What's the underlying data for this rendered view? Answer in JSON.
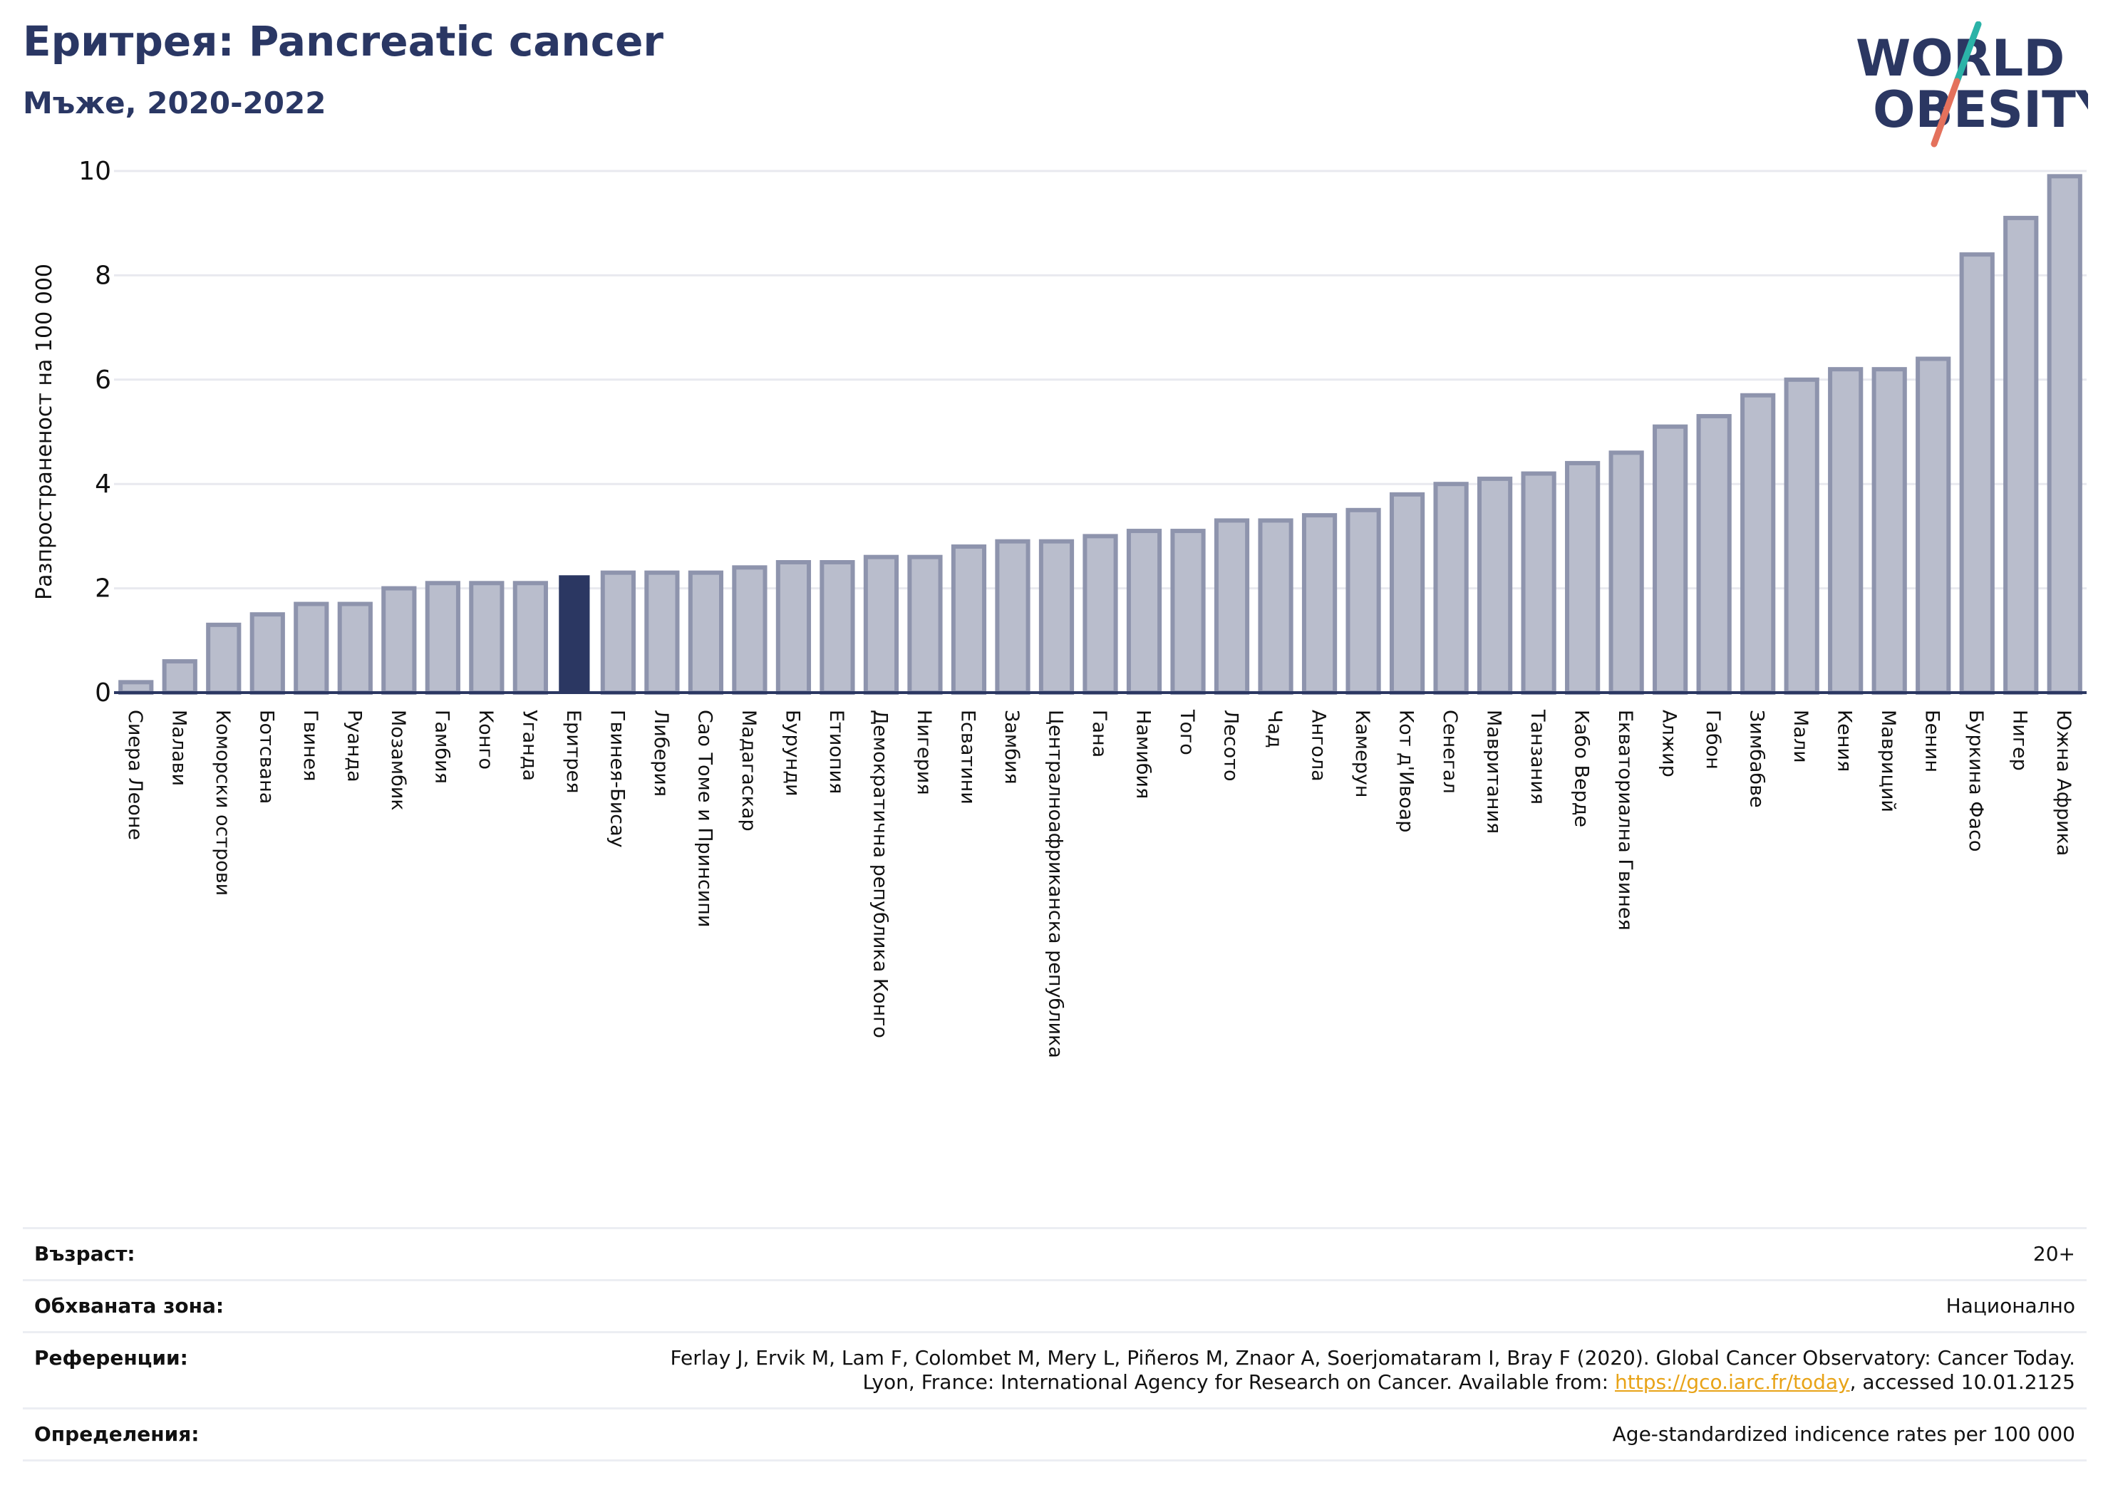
{
  "header": {
    "title": "Еритрея: Pancreatic cancer",
    "subtitle": "Мъже, 2020-2022"
  },
  "logo": {
    "line1": "WORLD",
    "line2": "OBESITY"
  },
  "colors": {
    "bar": "#b9bdcc",
    "bar_edge": "#8e94ad",
    "highlight": "#2b3762",
    "title": "#2a3764"
  },
  "chart_data": {
    "type": "bar",
    "title": "Еритрея: Pancreatic cancer",
    "ylabel": "Разпространеност  на 100 000",
    "xlabel": "",
    "ylim": [
      0,
      10
    ],
    "yticks": [
      0,
      2,
      4,
      6,
      8,
      10
    ],
    "grid": true,
    "highlight": "Еритрея",
    "categories": [
      "Сиера Леоне",
      "Малави",
      "Коморски острови",
      "Ботсвана",
      "Гвинея",
      "Руанда",
      "Мозамбик",
      "Гамбия",
      "Конго",
      "Уганда",
      "Еритрея",
      "Гвинея-Бисау",
      "Либерия",
      "Сао Томе и Принсипи",
      "Мадагаскар",
      "Бурунди",
      "Етиопия",
      "Демократична република Конго",
      "Нигерия",
      "Есватини",
      "Замбия",
      "Централноафриканска република",
      "Гана",
      "Намибия",
      "Того",
      "Лесото",
      "Чад",
      "Ангола",
      "Камерун",
      "Кот д'Ивоар",
      "Сенегал",
      "Мавритания",
      "Танзания",
      "Кабо Верде",
      "Екваториална Гвинея",
      "Алжир",
      "Габон",
      "Зимбабве",
      "Мали",
      "Кения",
      "Мавриций",
      "Бенин",
      "Буркина Фасо",
      "Нигер",
      "Южна Африка"
    ],
    "values": [
      0.2,
      0.6,
      1.3,
      1.5,
      1.7,
      1.7,
      2.0,
      2.1,
      2.1,
      2.1,
      2.25,
      2.3,
      2.3,
      2.3,
      2.4,
      2.5,
      2.5,
      2.6,
      2.6,
      2.8,
      2.9,
      2.9,
      3.0,
      3.1,
      3.1,
      3.3,
      3.3,
      3.4,
      3.5,
      3.8,
      4.0,
      4.1,
      4.2,
      4.4,
      4.6,
      5.1,
      5.3,
      5.7,
      6.0,
      6.2,
      6.2,
      6.4,
      8.4,
      9.1,
      9.9
    ]
  },
  "info": [
    {
      "label": "Възраст:",
      "value": "20+"
    },
    {
      "label": "Обхваната зона:",
      "value": "Национално"
    },
    {
      "label": "Референции:",
      "line1": "Ferlay J, Ervik M, Lam F, Colombet M, Mery L, Piñeros M, Znaor A, Soerjomataram I, Bray F (2020). Global Cancer Observatory: Cancer Today.",
      "line2_pre": "Lyon, France: International Agency for Research on Cancer. Available from: ",
      "link": "https://gco.iarc.fr/today",
      "line2_post": ", accessed 10.01.2125"
    },
    {
      "label": "Определения:",
      "value": "Age-standardized indicence rates per 100 000"
    }
  ]
}
